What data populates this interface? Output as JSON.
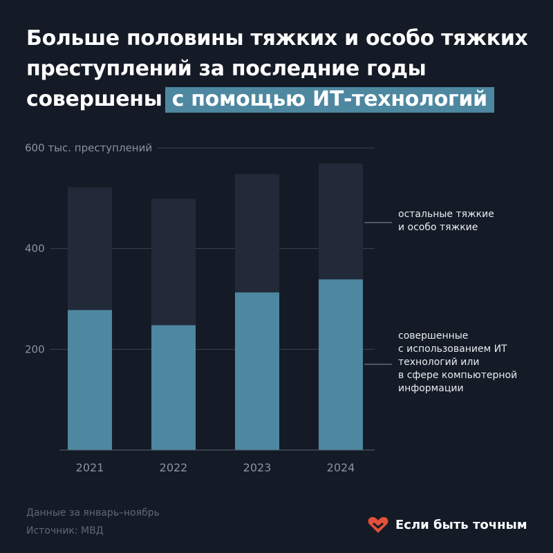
{
  "title": {
    "main": "Больше половины тяжких и особо тяжких преступлений за последние годы совершены",
    "highlight": "с помощью ИТ-технологий"
  },
  "chart_data": {
    "type": "bar",
    "stacked": true,
    "categories": [
      "2021",
      "2022",
      "2023",
      "2024"
    ],
    "series": [
      {
        "name": "совершенные с использованием ИТ технологий или в сфере компьютерной информации",
        "values": [
          278,
          248,
          313,
          339
        ],
        "color": "#4e87a0"
      },
      {
        "name": "остальные тяжкие и особо тяжкие",
        "values": [
          244,
          251,
          235,
          230
        ],
        "color": "#222a39"
      }
    ],
    "y_ticks": [
      {
        "value": 600,
        "label": "600 тыс. преступлений"
      },
      {
        "value": 400,
        "label": "400"
      },
      {
        "value": 200,
        "label": "200"
      }
    ],
    "ylim": [
      0,
      600
    ],
    "grid": true,
    "legend_placement": "right",
    "legend": [
      {
        "lines": [
          "остальные тяжкие",
          "и особо тяжкие"
        ],
        "series": 1
      },
      {
        "lines": [
          "совершенные",
          "с использованием ИТ",
          "технологий или",
          "в сфере компьютерной",
          "информации"
        ],
        "series": 0
      }
    ]
  },
  "footer": {
    "note": "Данные за январь–ноябрь",
    "source": "Источник: МВД",
    "brand": "Если быть точным",
    "brand_color": "#e4503a"
  }
}
